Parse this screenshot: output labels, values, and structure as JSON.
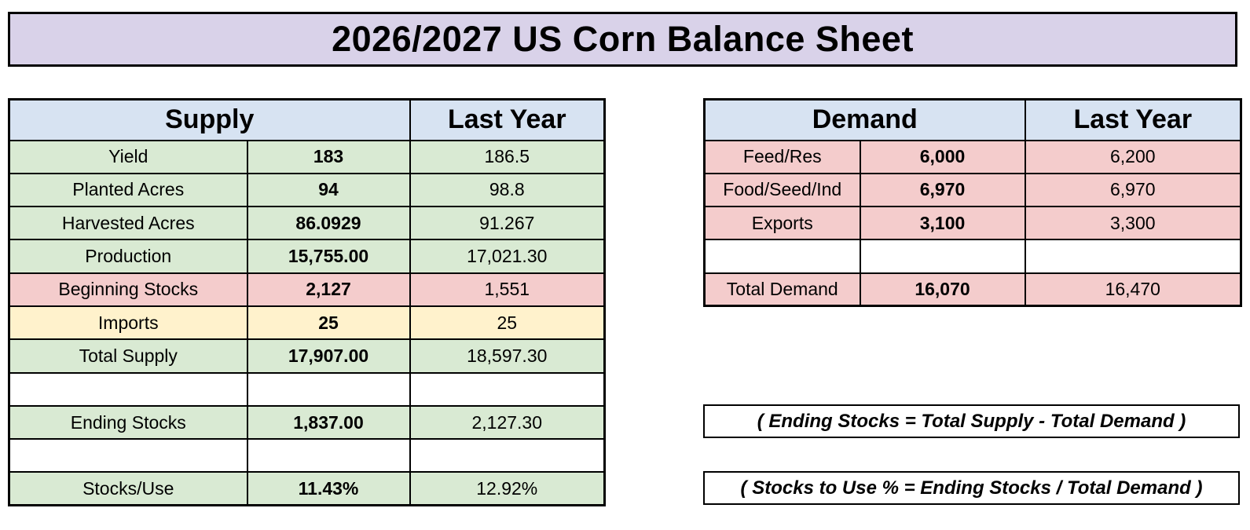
{
  "title": "2026/2027 US Corn Balance Sheet",
  "colors": {
    "title_bg": "#d9d2e9",
    "header_bg": "#d7e3f2",
    "green": "#d9ead3",
    "pink": "#f4cccc",
    "yellow": "#fff2cc",
    "white": "#ffffff",
    "border": "#000000"
  },
  "supply_table": {
    "header": {
      "title": "Supply",
      "last_year": "Last Year"
    },
    "rows": [
      {
        "label": "Yield",
        "value": "183",
        "last_year": "186.5",
        "color": "green"
      },
      {
        "label": "Planted Acres",
        "value": "94",
        "last_year": "98.8",
        "color": "green"
      },
      {
        "label": "Harvested Acres",
        "value": "86.0929",
        "last_year": "91.267",
        "color": "green"
      },
      {
        "label": "Production",
        "value": "15,755.00",
        "last_year": "17,021.30",
        "color": "green"
      },
      {
        "label": "Beginning Stocks",
        "value": "2,127",
        "last_year": "1,551",
        "color": "pink"
      },
      {
        "label": "Imports",
        "value": "25",
        "last_year": "25",
        "color": "yellow"
      },
      {
        "label": "Total Supply",
        "value": "17,907.00",
        "last_year": "18,597.30",
        "color": "green"
      },
      {
        "label": "",
        "value": "",
        "last_year": "",
        "color": "white"
      },
      {
        "label": "Ending Stocks",
        "value": "1,837.00",
        "last_year": "2,127.30",
        "color": "green"
      },
      {
        "label": "",
        "value": "",
        "last_year": "",
        "color": "white"
      },
      {
        "label": "Stocks/Use",
        "value": "11.43%",
        "last_year": "12.92%",
        "color": "green"
      }
    ]
  },
  "demand_table": {
    "header": {
      "title": "Demand",
      "last_year": "Last Year"
    },
    "rows": [
      {
        "label": "Feed/Res",
        "value": "6,000",
        "last_year": "6,200",
        "color": "pink"
      },
      {
        "label": "Food/Seed/Ind",
        "value": "6,970",
        "last_year": "6,970",
        "color": "pink"
      },
      {
        "label": "Exports",
        "value": "3,100",
        "last_year": "3,300",
        "color": "pink"
      },
      {
        "label": "",
        "value": "",
        "last_year": "",
        "color": "white"
      },
      {
        "label": "Total Demand",
        "value": "16,070",
        "last_year": "16,470",
        "color": "pink"
      }
    ]
  },
  "notes": [
    "( Ending Stocks = Total Supply - Total Demand )",
    "( Stocks to Use % = Ending Stocks / Total Demand )"
  ]
}
